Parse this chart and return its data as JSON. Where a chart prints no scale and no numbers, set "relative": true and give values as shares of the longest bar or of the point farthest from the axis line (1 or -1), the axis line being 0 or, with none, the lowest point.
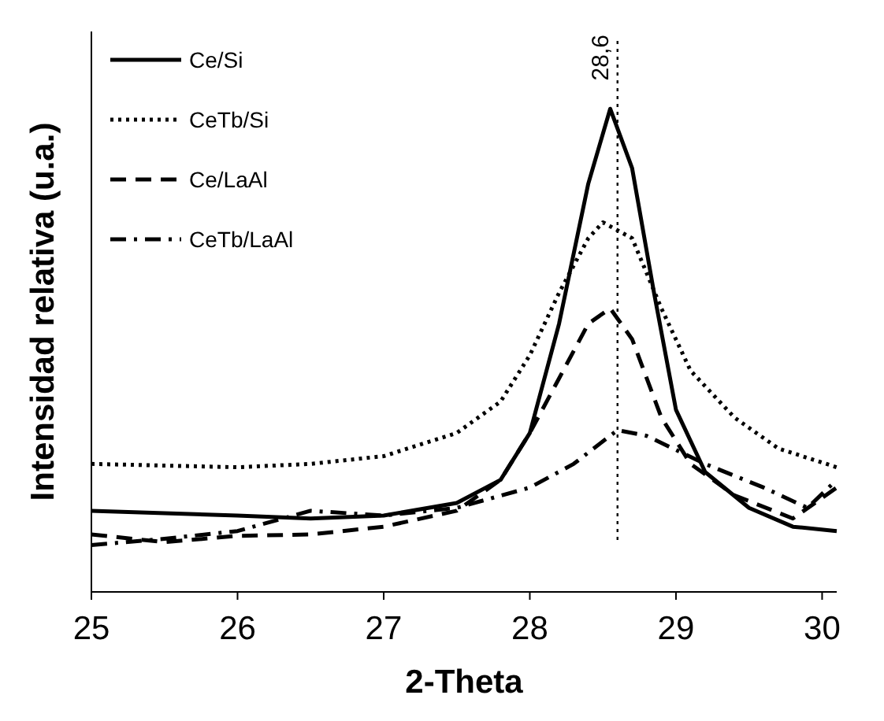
{
  "chart_data": {
    "type": "line",
    "xlabel": "2-Theta",
    "ylabel": "Intensidad relativa (u.a.)",
    "relative": true,
    "xlim": [
      25,
      30.1
    ],
    "xticks": [
      25,
      26,
      27,
      28,
      29,
      30
    ],
    "legend": "top left",
    "grid": false,
    "marker": "none",
    "ref_lines": [
      {
        "axis": "x",
        "value": 28.6,
        "label": "28,6",
        "line_style": "dotted",
        "color": "#000000"
      }
    ],
    "series": [
      {
        "name": "Ce/Si",
        "color": "#000000",
        "line_style": "solid",
        "x": [
          25,
          26,
          26.5,
          27,
          27.5,
          27.8,
          28,
          28.2,
          28.4,
          28.55,
          28.7,
          28.85,
          29,
          29.2,
          29.5,
          29.8,
          30.1
        ],
        "values": [
          0.168,
          0.158,
          0.152,
          0.158,
          0.184,
          0.232,
          0.329,
          0.555,
          0.845,
          1,
          0.877,
          0.619,
          0.377,
          0.248,
          0.174,
          0.135,
          0.126
        ]
      },
      {
        "name": "CeTb/Si",
        "color": "#000000",
        "line_style": "dotted",
        "x": [
          25,
          26,
          26.5,
          27,
          27.5,
          27.8,
          28,
          28.2,
          28.4,
          28.5,
          28.7,
          28.9,
          29.1,
          29.4,
          29.7,
          30.1
        ],
        "values": [
          0.265,
          0.258,
          0.265,
          0.281,
          0.329,
          0.394,
          0.49,
          0.619,
          0.732,
          0.765,
          0.732,
          0.587,
          0.458,
          0.361,
          0.297,
          0.258
        ]
      },
      {
        "name": "Ce/LaAl",
        "color": "#000000",
        "line_style": "dashed",
        "x": [
          25,
          25.5,
          26,
          26.5,
          27,
          27.5,
          27.8,
          28,
          28.2,
          28.4,
          28.55,
          28.7,
          28.9,
          29.1,
          29.4,
          29.8,
          30.1
        ],
        "values": [
          0.119,
          0.103,
          0.116,
          0.119,
          0.135,
          0.168,
          0.232,
          0.329,
          0.442,
          0.555,
          0.587,
          0.523,
          0.361,
          0.265,
          0.2,
          0.152,
          0.216
        ]
      },
      {
        "name": "CeTb/LaAl",
        "color": "#000000",
        "line_style": "dashdot",
        "x": [
          25,
          25.5,
          26,
          26.5,
          27,
          27.5,
          28,
          28.3,
          28.6,
          28.8,
          29.2,
          29.6,
          29.9,
          30.1
        ],
        "values": [
          0.097,
          0.11,
          0.126,
          0.168,
          0.158,
          0.174,
          0.216,
          0.265,
          0.335,
          0.323,
          0.265,
          0.216,
          0.174,
          0.232
        ]
      }
    ]
  }
}
